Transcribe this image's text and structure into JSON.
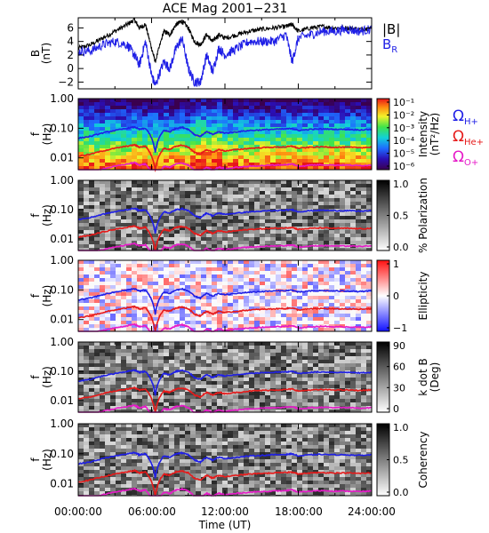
{
  "title": "ACE Mag 2001−231",
  "colors": {
    "black": "#000000",
    "blue": "#1f1fe6",
    "red": "#e61a1a",
    "magenta": "#e619c8"
  },
  "legend_top": {
    "total": "|B|",
    "radial": "B",
    "radial_sub": "R"
  },
  "legend_freq": [
    {
      "sym": "Ω",
      "sub": "H+",
      "color": "#1f1fe6"
    },
    {
      "sym": "Ω",
      "sub": "He+",
      "color": "#e61a1a"
    },
    {
      "sym": "Ω",
      "sub": "O+",
      "color": "#e619c8"
    }
  ],
  "xaxis": {
    "label": "Time (UT)",
    "ticks": [
      "00:00:00",
      "06:00:00",
      "12:00:00",
      "18:00:00",
      "24:00:00"
    ]
  },
  "chart_data": [
    {
      "type": "line",
      "panel": "magnetic field",
      "ylabel": "B",
      "yunit": "(nT)",
      "ylim": [
        -3,
        7.5
      ],
      "yticks": [
        "6",
        "4",
        "2",
        "0",
        "−2"
      ],
      "xlim_hours": [
        0,
        24
      ],
      "series": [
        {
          "name": "|B|",
          "color": "#000000",
          "x": [
            0,
            1,
            2,
            3,
            4,
            4.6,
            5,
            5.5,
            6,
            6.3,
            7,
            7.5,
            8,
            8.5,
            9,
            9.5,
            10,
            10.5,
            11,
            11.5,
            12,
            13,
            14,
            15,
            16,
            17,
            17.5,
            18,
            19,
            20,
            21,
            22,
            23,
            24
          ],
          "y": [
            3.0,
            3.5,
            4.5,
            5.5,
            6.5,
            7.2,
            6.0,
            6.5,
            3.0,
            1.0,
            5.5,
            5.0,
            6.5,
            7.0,
            6.0,
            4.0,
            3.5,
            5.0,
            4.0,
            5.0,
            4.5,
            5.0,
            5.5,
            5.8,
            6.0,
            6.2,
            6.5,
            5.5,
            6.0,
            6.2,
            6.0,
            6.0,
            5.8,
            6.0
          ]
        },
        {
          "name": "B_R",
          "color": "#1f1fe6",
          "x": [
            0,
            1,
            2,
            3,
            4,
            4.6,
            5,
            5.5,
            6,
            6.3,
            7,
            7.5,
            8,
            8.5,
            9,
            9.5,
            10,
            10.5,
            11,
            11.5,
            12,
            13,
            14,
            15,
            16,
            17,
            17.5,
            18,
            19,
            20,
            21,
            22,
            23,
            24
          ],
          "y": [
            2.5,
            2.6,
            3.5,
            4.0,
            3.5,
            2.0,
            0.5,
            4.0,
            -1.0,
            -2.5,
            1.0,
            0.0,
            3.0,
            4.5,
            0.0,
            -2.0,
            -2.0,
            2.0,
            -0.5,
            3.0,
            2.0,
            3.0,
            4.0,
            4.0,
            4.0,
            5.0,
            1.0,
            4.5,
            5.0,
            5.5,
            5.5,
            5.8,
            5.5,
            5.8
          ]
        }
      ]
    },
    {
      "type": "heatmap",
      "panel": "power spectrum",
      "ylabel": "f",
      "yunit": "(Hz)",
      "yscale": "log",
      "ylim": [
        0.004,
        1.0
      ],
      "yticks": [
        "1.00",
        "0.10",
        "0.01"
      ],
      "colorbar": {
        "label": "Intensity",
        "unit": "(nT²/Hz)",
        "ticks": [
          "10⁻¹",
          "10⁻²",
          "10⁻³",
          "10⁻⁴",
          "10⁻⁵",
          "10⁻⁶"
        ],
        "colormap": "rainbow"
      }
    },
    {
      "type": "heatmap",
      "panel": "polarization",
      "ylabel": "f",
      "yunit": "(Hz)",
      "yscale": "log",
      "ylim": [
        0.004,
        1.0
      ],
      "yticks": [
        "1.00",
        "0.10",
        "0.01"
      ],
      "colorbar": {
        "label": "% Polarization",
        "unit": "",
        "ticks": [
          "1.0",
          "0.5",
          "0.0"
        ],
        "colormap": "gray"
      }
    },
    {
      "type": "heatmap",
      "panel": "ellipticity",
      "ylabel": "f",
      "yunit": "(Hz)",
      "yscale": "log",
      "ylim": [
        0.004,
        1.0
      ],
      "yticks": [
        "1.00",
        "0.10",
        "0.01"
      ],
      "colorbar": {
        "label": "Ellipticity",
        "unit": "",
        "ticks": [
          "1",
          "0",
          "−1"
        ],
        "colormap": "blue-white-red"
      }
    },
    {
      "type": "heatmap",
      "panel": "wave normal angle",
      "ylabel": "f",
      "yunit": "(Hz)",
      "yscale": "log",
      "ylim": [
        0.004,
        1.0
      ],
      "yticks": [
        "1.00",
        "0.10",
        "0.01"
      ],
      "colorbar": {
        "label": "k dot B",
        "unit": "(Deg)",
        "ticks": [
          "90",
          "60",
          "30",
          "0"
        ],
        "colormap": "gray"
      }
    },
    {
      "type": "heatmap",
      "panel": "coherency",
      "ylabel": "f",
      "yunit": "(Hz)",
      "yscale": "log",
      "ylim": [
        0.004,
        1.0
      ],
      "yticks": [
        "1.00",
        "0.10",
        "0.01"
      ],
      "colorbar": {
        "label": "Coherency",
        "unit": "",
        "ticks": [
          "1.0",
          "0.5",
          "0.0"
        ],
        "colormap": "gray"
      }
    }
  ],
  "gyrofrequency_lines": {
    "x_hours": [
      0,
      1,
      2,
      3,
      4,
      4.6,
      5,
      5.5,
      6,
      6.3,
      7,
      7.5,
      8,
      8.5,
      9,
      9.5,
      10,
      10.5,
      11,
      11.5,
      12,
      13,
      14,
      15,
      16,
      17,
      17.5,
      18,
      19,
      20,
      21,
      22,
      23,
      24
    ],
    "H+": [
      0.046,
      0.053,
      0.069,
      0.084,
      0.099,
      0.11,
      0.092,
      0.099,
      0.046,
      0.015,
      0.084,
      0.076,
      0.099,
      0.107,
      0.092,
      0.061,
      0.053,
      0.076,
      0.061,
      0.076,
      0.069,
      0.076,
      0.084,
      0.088,
      0.092,
      0.095,
      0.099,
      0.084,
      0.092,
      0.095,
      0.092,
      0.092,
      0.088,
      0.092
    ],
    "He+": [
      0.0114,
      0.0133,
      0.0171,
      0.021,
      0.0248,
      0.0274,
      0.0229,
      0.0248,
      0.0114,
      0.0038,
      0.021,
      0.019,
      0.0248,
      0.0267,
      0.0229,
      0.0152,
      0.0133,
      0.019,
      0.0152,
      0.019,
      0.0171,
      0.019,
      0.021,
      0.0221,
      0.0229,
      0.0236,
      0.0248,
      0.021,
      0.0229,
      0.0236,
      0.0229,
      0.0229,
      0.0221,
      0.0229
    ],
    "O+": [
      0.0029,
      0.0033,
      0.0043,
      0.0052,
      0.0062,
      0.0069,
      0.0057,
      0.0062,
      0.0029,
      0.0009,
      0.0052,
      0.0048,
      0.0062,
      0.0067,
      0.0057,
      0.0038,
      0.0033,
      0.0048,
      0.0038,
      0.0048,
      0.0043,
      0.0048,
      0.0052,
      0.0055,
      0.0057,
      0.0059,
      0.0062,
      0.0052,
      0.0057,
      0.0059,
      0.0057,
      0.0057,
      0.0055,
      0.0057
    ]
  }
}
